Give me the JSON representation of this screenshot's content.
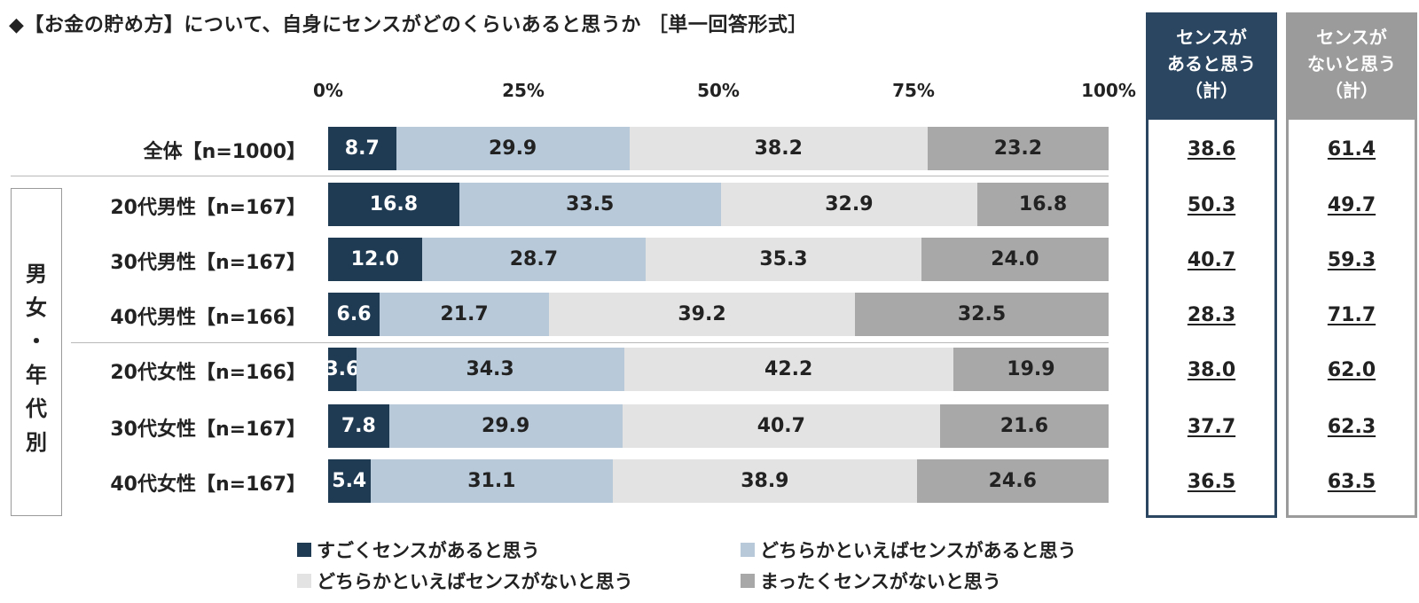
{
  "title": "◆【お金の貯め方】について、自身にセンスがどのくらいあると思うか ［単一回答形式］",
  "chart_data": {
    "type": "bar",
    "stacked": true,
    "orientation": "horizontal",
    "xlim": [
      0,
      100
    ],
    "ticks": [
      "0%",
      "25%",
      "50%",
      "75%",
      "100%"
    ],
    "categories": [
      "全体【n=1000】",
      "20代男性【n=167】",
      "30代男性【n=167】",
      "40代男性【n=166】",
      "20代女性【n=166】",
      "30代女性【n=167】",
      "40代女性【n=167】"
    ],
    "series": [
      {
        "name": "すごくセンスがあると思う",
        "color": "#1f3a53",
        "text_color": "#ffffff",
        "values": [
          8.7,
          16.8,
          12.0,
          6.6,
          3.6,
          7.8,
          5.4
        ]
      },
      {
        "name": "どちらかといえばセンスがあると思う",
        "color": "#b8c9d9",
        "text_color": "#222222",
        "values": [
          29.9,
          33.5,
          28.7,
          21.7,
          34.3,
          29.9,
          31.1
        ]
      },
      {
        "name": "どちらかといえばセンスがないと思う",
        "color": "#e3e3e3",
        "text_color": "#222222",
        "values": [
          38.2,
          32.9,
          35.3,
          39.2,
          42.2,
          40.7,
          38.9
        ]
      },
      {
        "name": "まったくセンスがないと思う",
        "color": "#a8a8a8",
        "text_color": "#222222",
        "values": [
          23.2,
          16.8,
          24.0,
          32.5,
          19.9,
          21.6,
          24.6
        ]
      }
    ],
    "value_labels": [
      [
        "8.7",
        "29.9",
        "38.2",
        "23.2"
      ],
      [
        "16.8",
        "33.5",
        "32.9",
        "16.8"
      ],
      [
        "12.0",
        "28.7",
        "35.3",
        "24.0"
      ],
      [
        "6.6",
        "21.7",
        "39.2",
        "32.5"
      ],
      [
        "3.6",
        "34.3",
        "42.2",
        "19.9"
      ],
      [
        "7.8",
        "29.9",
        "40.7",
        "21.6"
      ],
      [
        "5.4",
        "31.1",
        "38.9",
        "24.6"
      ]
    ],
    "group_label": "男女・年代別",
    "legend_position": "bottom"
  },
  "summary": {
    "sense_yes": {
      "header": [
        "センスが",
        "あると思う",
        "（計）"
      ],
      "color": "#2b4660",
      "values": [
        "38.6",
        "50.3",
        "40.7",
        "28.3",
        "38.0",
        "37.7",
        "36.5"
      ]
    },
    "sense_no": {
      "header": [
        "センスが",
        "ないと思う",
        "（計）"
      ],
      "color": "#9b9b9b",
      "values": [
        "61.4",
        "49.7",
        "59.3",
        "71.7",
        "62.0",
        "62.3",
        "63.5"
      ]
    }
  }
}
